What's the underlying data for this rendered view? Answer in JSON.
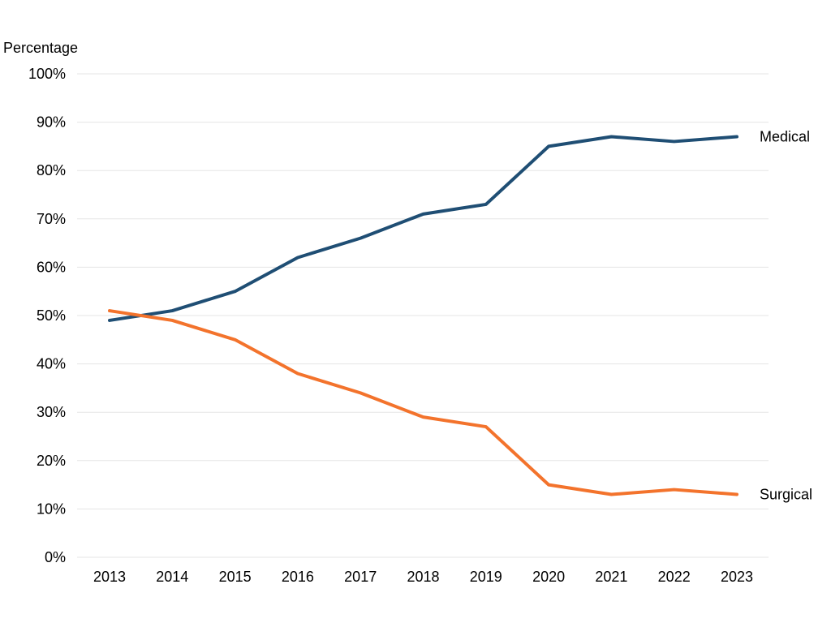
{
  "chart_data": {
    "type": "line",
    "title": "",
    "axis_title": "Percentage",
    "x": [
      2013,
      2014,
      2015,
      2016,
      2017,
      2018,
      2019,
      2020,
      2021,
      2022,
      2023
    ],
    "series": [
      {
        "name": "Medical",
        "color": "#1F4E74",
        "values": [
          49,
          51,
          55,
          62,
          66,
          71,
          73,
          85,
          87,
          86,
          87
        ]
      },
      {
        "name": "Surgical",
        "color": "#F3732C",
        "values": [
          51,
          49,
          45,
          38,
          34,
          29,
          27,
          15,
          13,
          14,
          13
        ]
      }
    ],
    "ylim": [
      0,
      100
    ],
    "ytick_step": 10,
    "ytick_suffix": "%",
    "grid": true,
    "legend_position": "line-end-labels",
    "colors": {
      "background": "#FFFFFF",
      "gridline": "#E5E5E5",
      "text": "#000000"
    }
  }
}
